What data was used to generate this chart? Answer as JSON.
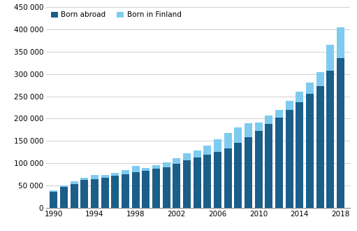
{
  "years": [
    1990,
    1991,
    1992,
    1993,
    1994,
    1995,
    1996,
    1997,
    1998,
    1999,
    2000,
    2001,
    2002,
    2003,
    2004,
    2005,
    2006,
    2007,
    2008,
    2009,
    2010,
    2011,
    2012,
    2013,
    2014,
    2015,
    2016,
    2017,
    2018
  ],
  "born_abroad": [
    35500,
    46500,
    54000,
    62000,
    65000,
    68000,
    72000,
    76000,
    80500,
    83000,
    87000,
    91500,
    98000,
    107000,
    113000,
    119000,
    125000,
    134000,
    145000,
    158000,
    172000,
    188000,
    202000,
    219000,
    237000,
    255000,
    272000,
    307000,
    335000
  ],
  "born_in_finland": [
    3500,
    3000,
    5000,
    5000,
    8000,
    6000,
    6000,
    8000,
    13000,
    6000,
    9000,
    10000,
    14000,
    15000,
    16000,
    21000,
    28000,
    33000,
    36000,
    32000,
    19000,
    19000,
    18000,
    21000,
    23000,
    25000,
    32000,
    58000,
    70000
  ],
  "color_abroad": "#1b5e8a",
  "color_finland": "#7ecbef",
  "legend_abroad": "Born abroad",
  "legend_finland": "Born in Finland",
  "ylim": [
    0,
    450000
  ],
  "yticks": [
    0,
    50000,
    100000,
    150000,
    200000,
    250000,
    300000,
    350000,
    400000,
    450000
  ],
  "xticks": [
    1990,
    1994,
    1998,
    2002,
    2006,
    2010,
    2014,
    2018
  ],
  "grid_color": "#c8c8c8"
}
